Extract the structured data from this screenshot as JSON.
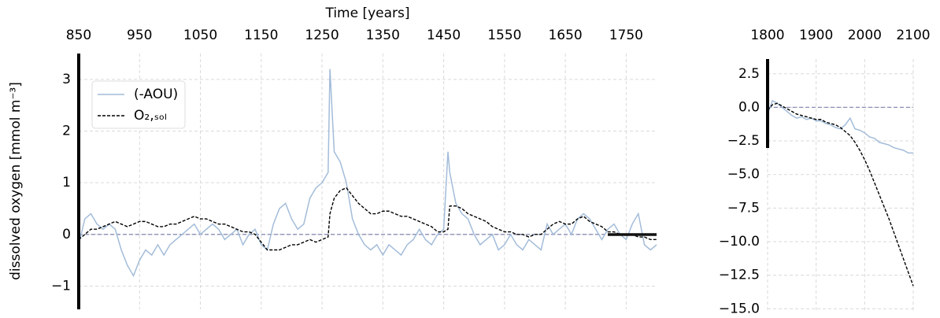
{
  "chart_data": [
    {
      "type": "line",
      "xlabel": "Time [years]",
      "ylabel": "dissolved oxygen [mmol m⁻³]",
      "x": [
        850,
        860,
        870,
        880,
        890,
        900,
        910,
        920,
        930,
        940,
        950,
        960,
        970,
        980,
        990,
        1000,
        1010,
        1020,
        1030,
        1040,
        1050,
        1060,
        1070,
        1080,
        1090,
        1100,
        1110,
        1120,
        1130,
        1140,
        1150,
        1160,
        1170,
        1180,
        1190,
        1200,
        1210,
        1220,
        1230,
        1240,
        1250,
        1260,
        1263,
        1270,
        1280,
        1290,
        1300,
        1310,
        1320,
        1330,
        1340,
        1350,
        1360,
        1370,
        1380,
        1390,
        1400,
        1410,
        1420,
        1430,
        1440,
        1450,
        1457,
        1460,
        1470,
        1480,
        1490,
        1500,
        1510,
        1520,
        1530,
        1540,
        1550,
        1560,
        1570,
        1580,
        1590,
        1600,
        1610,
        1620,
        1630,
        1640,
        1650,
        1660,
        1670,
        1680,
        1690,
        1700,
        1710,
        1720,
        1730,
        1740,
        1750,
        1760,
        1770,
        1780,
        1790,
        1800
      ],
      "series": [
        {
          "name": "(-AOU)",
          "color": "#a3bcd9",
          "dash": false,
          "values": [
            -0.2,
            0.3,
            0.4,
            0.2,
            0.1,
            0.2,
            0.1,
            -0.3,
            -0.6,
            -0.8,
            -0.5,
            -0.3,
            -0.4,
            -0.2,
            -0.4,
            -0.2,
            -0.1,
            0.0,
            0.1,
            0.2,
            0.0,
            0.1,
            0.2,
            0.1,
            -0.1,
            0.0,
            0.1,
            -0.2,
            0.0,
            0.1,
            -0.2,
            -0.3,
            0.2,
            0.5,
            0.6,
            0.3,
            0.1,
            0.2,
            0.7,
            0.9,
            1.0,
            1.2,
            3.2,
            1.6,
            1.4,
            1.0,
            0.3,
            0.0,
            -0.2,
            -0.3,
            -0.2,
            -0.4,
            -0.2,
            -0.3,
            -0.4,
            -0.2,
            -0.1,
            0.1,
            -0.1,
            -0.2,
            0.0,
            0.1,
            1.6,
            1.2,
            0.6,
            0.4,
            0.3,
            0.0,
            -0.2,
            -0.1,
            0.0,
            -0.3,
            -0.2,
            0.0,
            -0.2,
            -0.3,
            -0.1,
            -0.2,
            -0.3,
            0.2,
            0.0,
            0.1,
            0.2,
            0.0,
            0.3,
            0.4,
            0.3,
            0.1,
            -0.1,
            0.1,
            0.2,
            0.0,
            -0.1,
            0.2,
            0.4,
            -0.2,
            -0.3,
            -0.2
          ]
        },
        {
          "name": "O₂,ₛₒₗ",
          "color": "#000000",
          "dash": true,
          "values": [
            -0.1,
            0.0,
            0.1,
            0.1,
            0.15,
            0.2,
            0.25,
            0.2,
            0.15,
            0.2,
            0.25,
            0.25,
            0.2,
            0.15,
            0.15,
            0.2,
            0.2,
            0.25,
            0.3,
            0.35,
            0.3,
            0.3,
            0.25,
            0.2,
            0.2,
            0.15,
            0.1,
            0.05,
            0.05,
            0.0,
            -0.15,
            -0.3,
            -0.3,
            -0.3,
            -0.25,
            -0.2,
            -0.2,
            -0.15,
            -0.1,
            -0.15,
            -0.1,
            -0.05,
            0.4,
            0.7,
            0.85,
            0.9,
            0.75,
            0.6,
            0.5,
            0.4,
            0.4,
            0.45,
            0.45,
            0.4,
            0.35,
            0.35,
            0.3,
            0.25,
            0.2,
            0.15,
            0.05,
            0.05,
            0.1,
            0.55,
            0.55,
            0.5,
            0.4,
            0.35,
            0.3,
            0.25,
            0.15,
            0.1,
            0.05,
            0.05,
            0.0,
            0.0,
            -0.05,
            0.0,
            0.0,
            0.1,
            0.2,
            0.25,
            0.2,
            0.2,
            0.3,
            0.35,
            0.25,
            0.2,
            0.15,
            0.05,
            0.05,
            0.0,
            0.0,
            0.0,
            -0.05,
            -0.05,
            -0.1,
            -0.1
          ]
        }
      ],
      "hline": 0,
      "xlim": [
        850,
        1800
      ],
      "xticks": [
        850,
        950,
        1050,
        1150,
        1250,
        1350,
        1450,
        1550,
        1650,
        1750
      ],
      "ylim": [
        -1.45,
        3.5
      ],
      "yticks": [
        {
          "value": -1,
          "label": "−1"
        },
        0,
        1,
        2,
        3
      ],
      "grid": true,
      "legend": "upper left"
    },
    {
      "type": "line",
      "x": [
        1800,
        1810,
        1820,
        1830,
        1840,
        1850,
        1860,
        1870,
        1880,
        1890,
        1900,
        1910,
        1920,
        1930,
        1940,
        1950,
        1960,
        1970,
        1980,
        1990,
        2000,
        2010,
        2020,
        2030,
        2040,
        2050,
        2060,
        2070,
        2080,
        2090,
        2100
      ],
      "series": [
        {
          "color": "#a3bcd9",
          "dash": false,
          "values": [
            -0.5,
            0.5,
            0.3,
            0.0,
            -0.3,
            -0.6,
            -0.8,
            -0.7,
            -0.9,
            -0.8,
            -1.0,
            -1.0,
            -1.2,
            -1.3,
            -1.5,
            -1.6,
            -1.3,
            -0.8,
            -1.6,
            -1.7,
            -1.9,
            -2.2,
            -2.3,
            -2.6,
            -2.7,
            -2.8,
            -3.0,
            -3.1,
            -3.2,
            -3.4,
            -3.4
          ]
        },
        {
          "color": "#000000",
          "dash": true,
          "values": [
            -0.2,
            0.2,
            0.3,
            0.1,
            -0.1,
            -0.3,
            -0.5,
            -0.6,
            -0.7,
            -0.8,
            -0.9,
            -0.9,
            -1.1,
            -1.2,
            -1.3,
            -1.5,
            -1.8,
            -2.1,
            -2.6,
            -3.2,
            -3.9,
            -4.7,
            -5.6,
            -6.5,
            -7.4,
            -8.3,
            -9.3,
            -10.3,
            -11.3,
            -12.3,
            -13.3
          ]
        }
      ],
      "hline": 0,
      "xlim": [
        1800,
        2100
      ],
      "xticks": [
        1800,
        1900,
        2000,
        2100
      ],
      "ylim": [
        -15.1,
        3.6
      ],
      "yticks": [
        {
          "value": -15,
          "label": "−15.0"
        },
        {
          "value": -12.5,
          "label": "−12.5"
        },
        {
          "value": -10,
          "label": "−10.0"
        },
        {
          "value": -7.5,
          "label": "−7.5"
        },
        {
          "value": -5,
          "label": "−5.0"
        },
        {
          "value": -2.5,
          "label": "−2.5"
        },
        {
          "value": 0,
          "label": "0.0"
        },
        2.5
      ],
      "grid": true
    }
  ]
}
